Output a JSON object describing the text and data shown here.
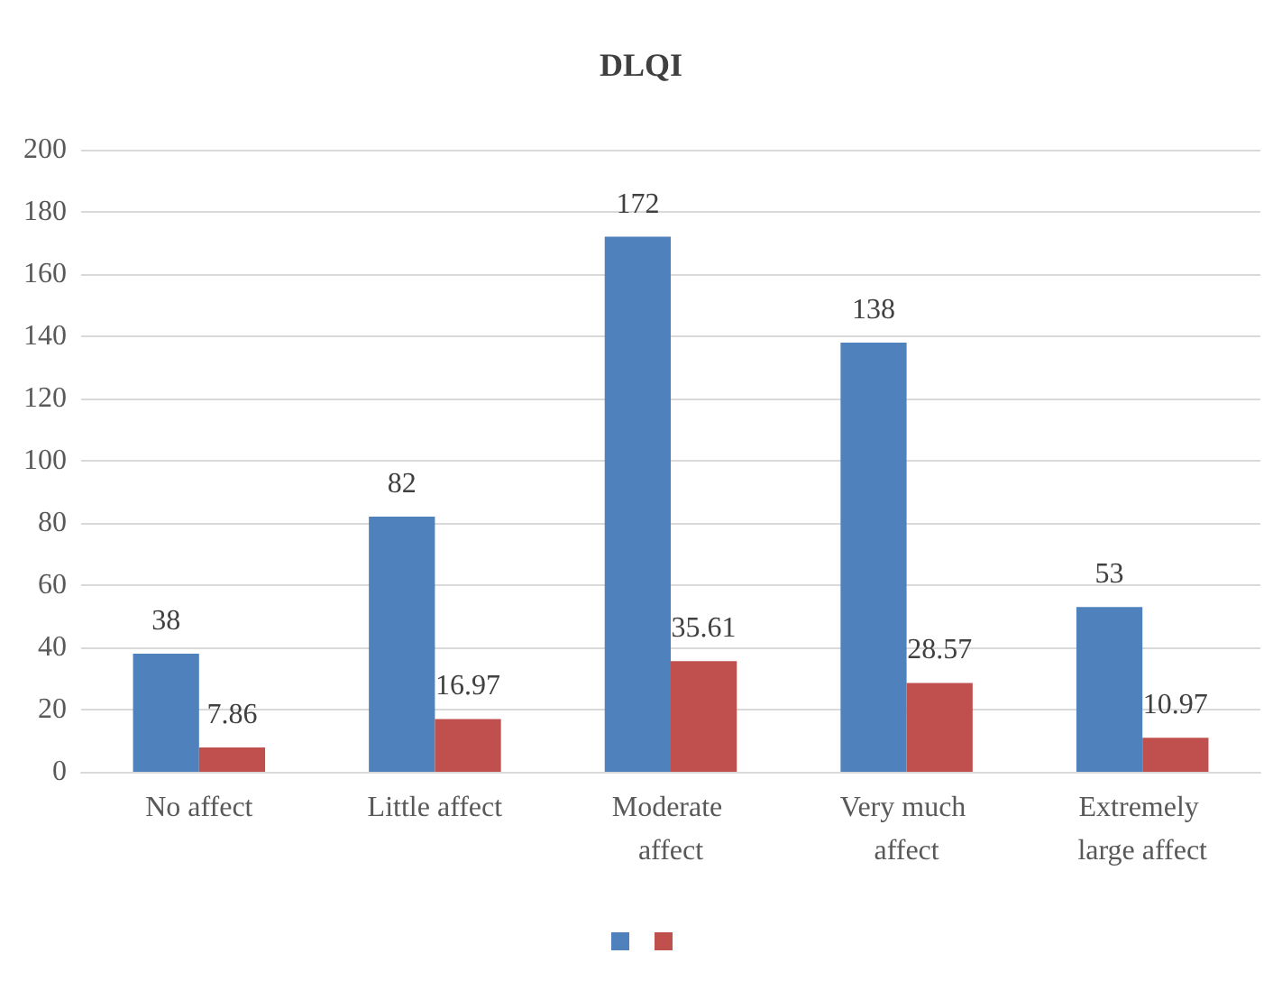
{
  "chart_data": {
    "type": "bar",
    "title": "DLQI",
    "categories": [
      "No affect",
      "Little affect",
      "Moderate affect",
      "Very much affect",
      "Extremely large affect"
    ],
    "series": [
      {
        "color": "#4f81bd",
        "values": [
          38,
          82,
          172,
          138,
          53
        ]
      },
      {
        "color": "#c0504d",
        "values": [
          7.86,
          16.97,
          35.61,
          28.57,
          10.97
        ]
      }
    ],
    "ylim": [
      0,
      200
    ],
    "yticks": [
      0,
      20,
      40,
      60,
      80,
      100,
      120,
      140,
      160,
      180,
      200
    ],
    "grid": "y",
    "data_labels": true
  }
}
